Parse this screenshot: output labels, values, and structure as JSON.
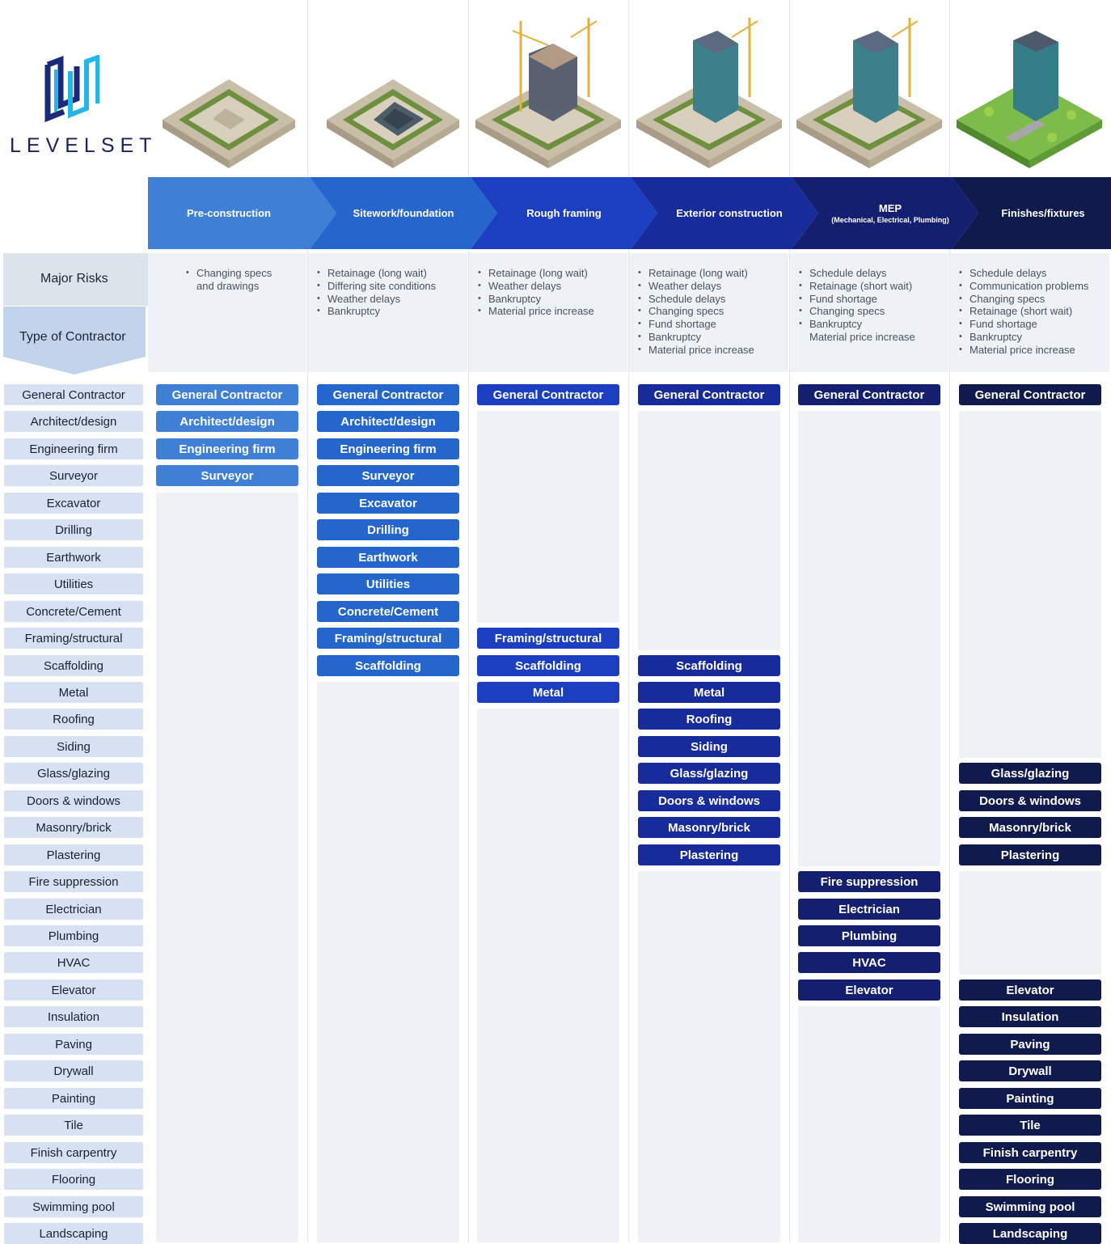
{
  "brand": {
    "name": "LEVELSET"
  },
  "colors": {
    "phase_1": "#3f7fd6",
    "phase_2": "#2566cc",
    "phase_3": "#1b3fc0",
    "phase_4": "#182b9a",
    "phase_5": "#14206f",
    "phase_6": "#111a4d",
    "label_bg": "#d7e1f2",
    "panel_bg": "#eef1f5"
  },
  "headers": {
    "major_risks": "Major Risks",
    "type_of_contractor": "Type of Contractor"
  },
  "phases": [
    {
      "label": "Pre-construction",
      "sublabel": ""
    },
    {
      "label": "Sitework/foundation",
      "sublabel": ""
    },
    {
      "label": "Rough framing",
      "sublabel": ""
    },
    {
      "label": "Exterior construction",
      "sublabel": ""
    },
    {
      "label": "MEP",
      "sublabel": "(Mechanical, Electrical, Plumbing)"
    },
    {
      "label": "Finishes/fixtures",
      "sublabel": ""
    }
  ],
  "risks": [
    [
      {
        "t": "Changing specs",
        "b": true
      },
      {
        "t": "and drawings",
        "b": false
      }
    ],
    [
      {
        "t": "Retainage (long wait)",
        "b": true
      },
      {
        "t": "Differing site conditions",
        "b": true
      },
      {
        "t": "Weather delays",
        "b": true
      },
      {
        "t": "Bankruptcy",
        "b": true
      }
    ],
    [
      {
        "t": "Retainage (long wait)",
        "b": true
      },
      {
        "t": "Weather delays",
        "b": true
      },
      {
        "t": "Bankruptcy",
        "b": true
      },
      {
        "t": "Material price increase",
        "b": true
      }
    ],
    [
      {
        "t": "Retainage (long wait)",
        "b": true
      },
      {
        "t": "Weather delays",
        "b": true
      },
      {
        "t": "Schedule delays",
        "b": true
      },
      {
        "t": "Changing specs",
        "b": true
      },
      {
        "t": "Fund shortage",
        "b": true
      },
      {
        "t": "Bankruptcy",
        "b": true
      },
      {
        "t": "Material price increase",
        "b": true
      }
    ],
    [
      {
        "t": "Schedule delays",
        "b": true
      },
      {
        "t": "Retainage (short wait)",
        "b": true
      },
      {
        "t": "Fund shortage",
        "b": true
      },
      {
        "t": "Changing specs",
        "b": true
      },
      {
        "t": "Bankruptcy",
        "b": true
      },
      {
        "t": "Material price increase",
        "b": false
      }
    ],
    [
      {
        "t": "Schedule delays",
        "b": true
      },
      {
        "t": "Communication problems",
        "b": true
      },
      {
        "t": "Changing specs",
        "b": true
      },
      {
        "t": "Retainage (short wait)",
        "b": true
      },
      {
        "t": "Fund shortage",
        "b": true
      },
      {
        "t": "Bankruptcy",
        "b": true
      },
      {
        "t": "Material price increase",
        "b": true
      }
    ]
  ],
  "contractors": [
    "General Contractor",
    "Architect/design",
    "Engineering firm",
    "Surveyor",
    "Excavator",
    "Drilling",
    "Earthwork",
    "Utilities",
    "Concrete/Cement",
    "Framing/structural",
    "Scaffolding",
    "Metal",
    "Roofing",
    "Siding",
    "Glass/glazing",
    "Doors & windows",
    "Masonry/brick",
    "Plastering",
    "Fire suppression",
    "Electrician",
    "Plumbing",
    "HVAC",
    "Elevator",
    "Insulation",
    "Paving",
    "Drywall",
    "Painting",
    "Tile",
    "Finish carpentry",
    "Flooring",
    "Swimming pool",
    "Landscaping"
  ],
  "involvement": [
    [
      0,
      1,
      2,
      3
    ],
    [
      0,
      1,
      2,
      3,
      4,
      5,
      6,
      7,
      8,
      9,
      10
    ],
    [
      0,
      9,
      10,
      11
    ],
    [
      0,
      10,
      11,
      12,
      13,
      14,
      15,
      16,
      17
    ],
    [
      0,
      18,
      19,
      20,
      21,
      22
    ],
    [
      0,
      14,
      15,
      16,
      17,
      22,
      23,
      24,
      25,
      26,
      27,
      28,
      29,
      30,
      31
    ]
  ]
}
